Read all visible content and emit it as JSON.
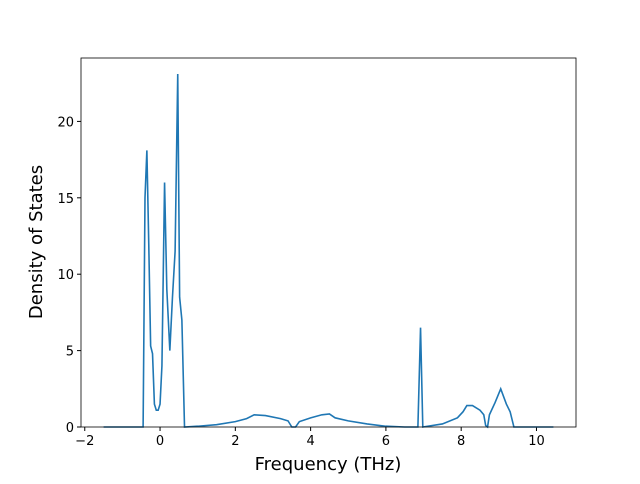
{
  "chart_data": {
    "type": "line",
    "xlabel": "Frequency (THz)",
    "ylabel": "Density of States",
    "x": [
      -1.5,
      -0.5,
      -0.45,
      -0.4,
      -0.35,
      -0.3,
      -0.25,
      -0.2,
      -0.15,
      -0.1,
      -0.05,
      0,
      0.05,
      0.12,
      0.18,
      0.26,
      0.33,
      0.4,
      0.47,
      0.52,
      0.58,
      0.65,
      1,
      1.5,
      2,
      2.3,
      2.5,
      2.8,
      3.2,
      3.4,
      3.5,
      3.6,
      3.7,
      4,
      4.3,
      4.5,
      4.65,
      5,
      5.5,
      6,
      6.5,
      6.85,
      6.92,
      6.98,
      7.5,
      7.9,
      8.05,
      8.15,
      8.3,
      8.5,
      8.6,
      8.65,
      8.7,
      8.75,
      8.9,
      9.05,
      9.2,
      9.3,
      9.4,
      10.45
    ],
    "series": [
      {
        "color": "#1f77b4",
        "values": [
          0,
          0,
          0,
          15,
          18.1,
          12,
          5.3,
          4.8,
          1.5,
          1.1,
          1.1,
          1.5,
          4,
          16,
          9,
          5,
          8.5,
          11.5,
          23.1,
          8.5,
          7,
          0,
          0.05,
          0.15,
          0.35,
          0.55,
          0.8,
          0.75,
          0.55,
          0.4,
          0,
          0,
          0.35,
          0.6,
          0.8,
          0.85,
          0.6,
          0.4,
          0.2,
          0.05,
          0,
          0,
          6.5,
          0,
          0.2,
          0.6,
          1.0,
          1.4,
          1.4,
          1.1,
          0.8,
          0.1,
          0,
          0.8,
          1.6,
          2.5,
          1.5,
          1.0,
          0,
          0
        ]
      }
    ],
    "xlim": [
      -2.1,
      11.05
    ],
    "ylim": [
      0,
      24.15
    ],
    "xticks": [
      {
        "value": -2,
        "label": "−2"
      },
      0,
      2,
      4,
      6,
      8,
      10
    ],
    "yticks": [
      0,
      5,
      10,
      15,
      20
    ]
  }
}
